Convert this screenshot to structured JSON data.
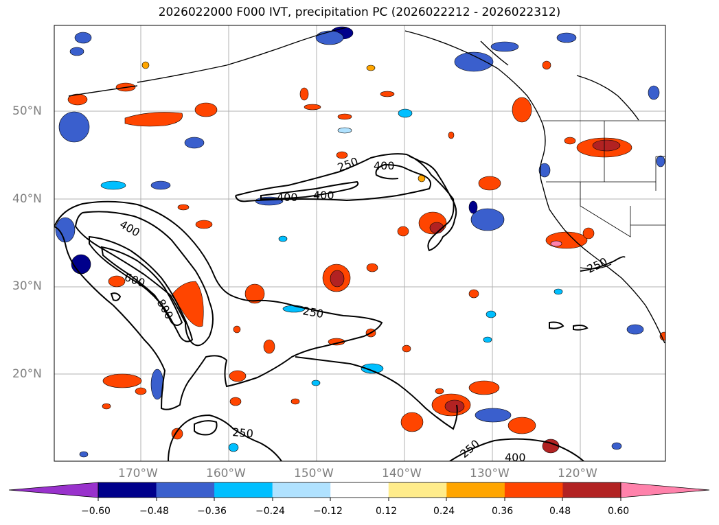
{
  "title": "2026022000 F000 IVT, precipitation PC (2026022212 - 2026022312)",
  "map": {
    "lat_labels": [
      "50°N",
      "40°N",
      "30°N",
      "20°N"
    ],
    "lon_labels": [
      "170°W",
      "160°W",
      "150°W",
      "140°W",
      "130°W",
      "120°W"
    ],
    "contour_labels": [
      "250",
      "400",
      "400",
      "400",
      "400",
      "600",
      "800",
      "250",
      "250",
      "250",
      "250",
      "400"
    ]
  },
  "colorbar": {
    "ticks": [
      "−0.60",
      "−0.48",
      "−0.36",
      "−0.24",
      "−0.12",
      "0.12",
      "0.24",
      "0.36",
      "0.48",
      "0.60"
    ],
    "colors": [
      "#9932cc",
      "#00008b",
      "#3a5fcd",
      "#00bfff",
      "#b0e2ff",
      "#ffffff",
      "#ffec8b",
      "#ffa500",
      "#ff4500",
      "#b22222",
      "#ff82ab"
    ]
  }
}
